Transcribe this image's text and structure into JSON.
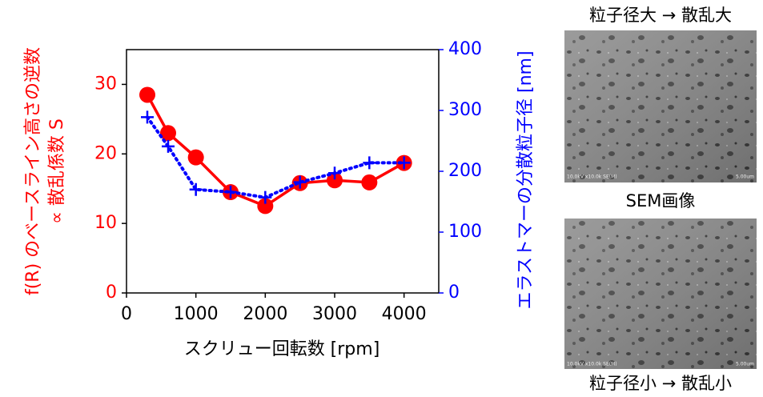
{
  "chart_data": {
    "type": "line",
    "xlabel": "スクリュー回転数 [rpm]",
    "ylabel": [
      "f(R) のベースライン高さの逆数",
      "∝ 散乱係数 S"
    ],
    "y2label": "エラストマーの分散粒子径 [nm]",
    "x": [
      300,
      600,
      1000,
      1500,
      2000,
      2500,
      3000,
      3500,
      4000
    ],
    "series": [
      {
        "color": "#ff0000",
        "values": [
          28.5,
          23,
          19.5,
          14.5,
          12.5,
          15.8,
          16.2,
          15.9,
          18.7
        ]
      },
      {
        "color": "#0000ff",
        "axis": "y2",
        "values": [
          289,
          241,
          170,
          166,
          157,
          182,
          197,
          214,
          214
        ]
      }
    ],
    "xlim": [
      0,
      4500
    ],
    "xticks": [
      0,
      1000,
      2000,
      3000,
      4000
    ],
    "ylim": [
      0,
      35
    ],
    "yticks": [
      0,
      10,
      20,
      30
    ],
    "y2lim": [
      0,
      400
    ],
    "y2ticks": [
      0,
      100,
      200,
      300,
      400
    ]
  },
  "side_panel": {
    "top_caption": "粒子径大 → 散乱大",
    "middle_caption": "SEM画像",
    "bottom_caption": "粒子径小 → 散乱小",
    "image_info": "10.0kV x10.0k SE(M)",
    "image_scale": "5.00um"
  }
}
